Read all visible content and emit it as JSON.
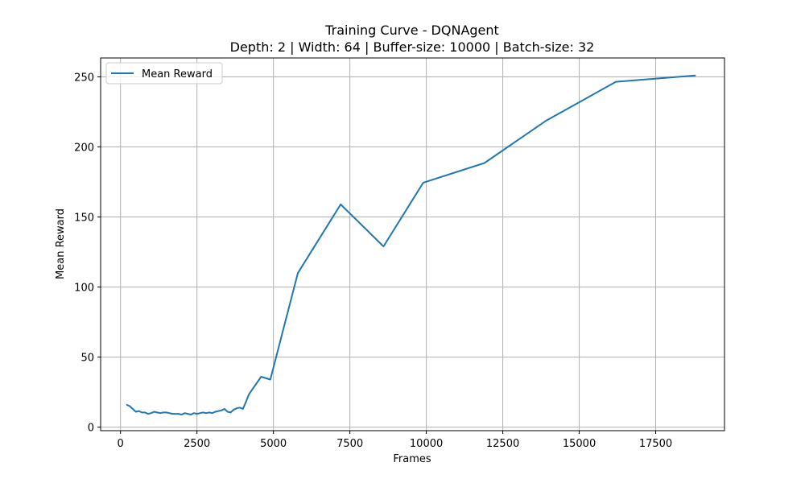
{
  "chart_data": {
    "type": "line",
    "title": "Training Curve - DQNAgent",
    "subtitle": "Depth: 2 | Width: 64 | Buffer-size: 10000 | Batch-size: 32",
    "xlabel": "Frames",
    "ylabel": "Mean Reward",
    "xlim": [
      -650,
      19750
    ],
    "ylim": [
      -2.5,
      263.5
    ],
    "xticks": [
      0,
      2500,
      5000,
      7500,
      10000,
      12500,
      15000,
      17500
    ],
    "yticks": [
      0,
      50,
      100,
      150,
      200,
      250
    ],
    "grid": true,
    "legend_position": "top-left",
    "series": [
      {
        "name": "Mean Reward",
        "color": "#1f77b4",
        "x": [
          200,
          300,
          400,
          500,
          600,
          700,
          800,
          900,
          1000,
          1100,
          1200,
          1300,
          1400,
          1500,
          1600,
          1700,
          1800,
          1900,
          2000,
          2100,
          2200,
          2300,
          2400,
          2500,
          2600,
          2700,
          2800,
          2900,
          3000,
          3100,
          3200,
          3300,
          3400,
          3500,
          3600,
          3700,
          3800,
          3900,
          4000,
          4100,
          4200,
          4600,
          4900,
          5800,
          7200,
          8600,
          9900,
          11900,
          13900,
          16200,
          18800
        ],
        "values": [
          16,
          15,
          13,
          11,
          11.5,
          10.5,
          10.5,
          9.5,
          10,
          11,
          10.5,
          10,
          10.5,
          10.5,
          10,
          9.5,
          9.5,
          9.5,
          9,
          10,
          9.5,
          9,
          10,
          9.5,
          10,
          10.5,
          10,
          10.5,
          10,
          11,
          11.5,
          12,
          13,
          11,
          10.5,
          12.5,
          13.5,
          14,
          13,
          18,
          23.5,
          36,
          34,
          110,
          159,
          129,
          174.5,
          188.5,
          218.5,
          246.5,
          251
        ]
      }
    ]
  }
}
